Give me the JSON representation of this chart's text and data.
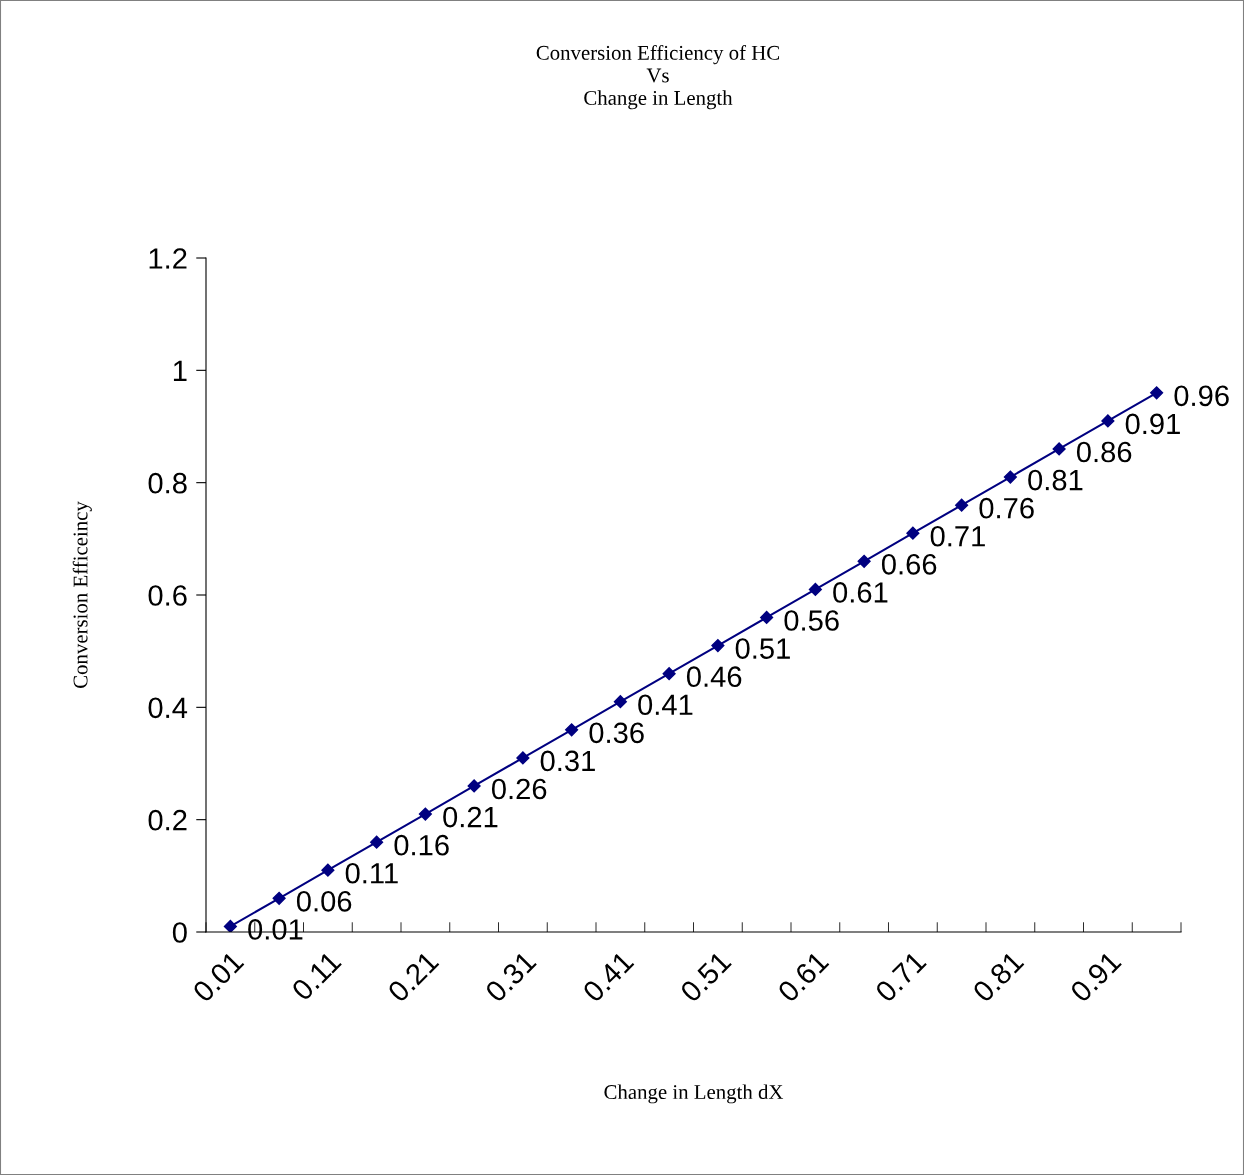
{
  "chart_data": {
    "type": "line",
    "title": "Conversion Efficiency of HC\nVs\nChange in Length",
    "xlabel": "Change in Length dX",
    "ylabel": "Conversion Efficeincy",
    "categories": [
      "0.01",
      null,
      "0.11",
      null,
      "0.21",
      null,
      "0.31",
      null,
      "0.41",
      null,
      "0.51",
      null,
      "0.61",
      null,
      "0.71",
      null,
      "0.81",
      null,
      "0.91",
      null
    ],
    "series": [
      {
        "color": "#000080",
        "values": [
          0.01,
          0.06,
          0.11,
          0.16,
          0.21,
          0.26,
          0.31,
          0.36,
          0.41,
          0.46,
          0.51,
          0.56,
          0.61,
          0.66,
          0.71,
          0.76,
          0.81,
          0.86,
          0.91,
          0.96
        ]
      }
    ],
    "ylim": [
      0,
      1.2
    ],
    "yticks": [
      0,
      0.2,
      0.4,
      0.6,
      0.8,
      1,
      1.2
    ],
    "marker": "diamond",
    "line_style": "solid",
    "grid": false,
    "legend": false,
    "data_labels": true
  }
}
